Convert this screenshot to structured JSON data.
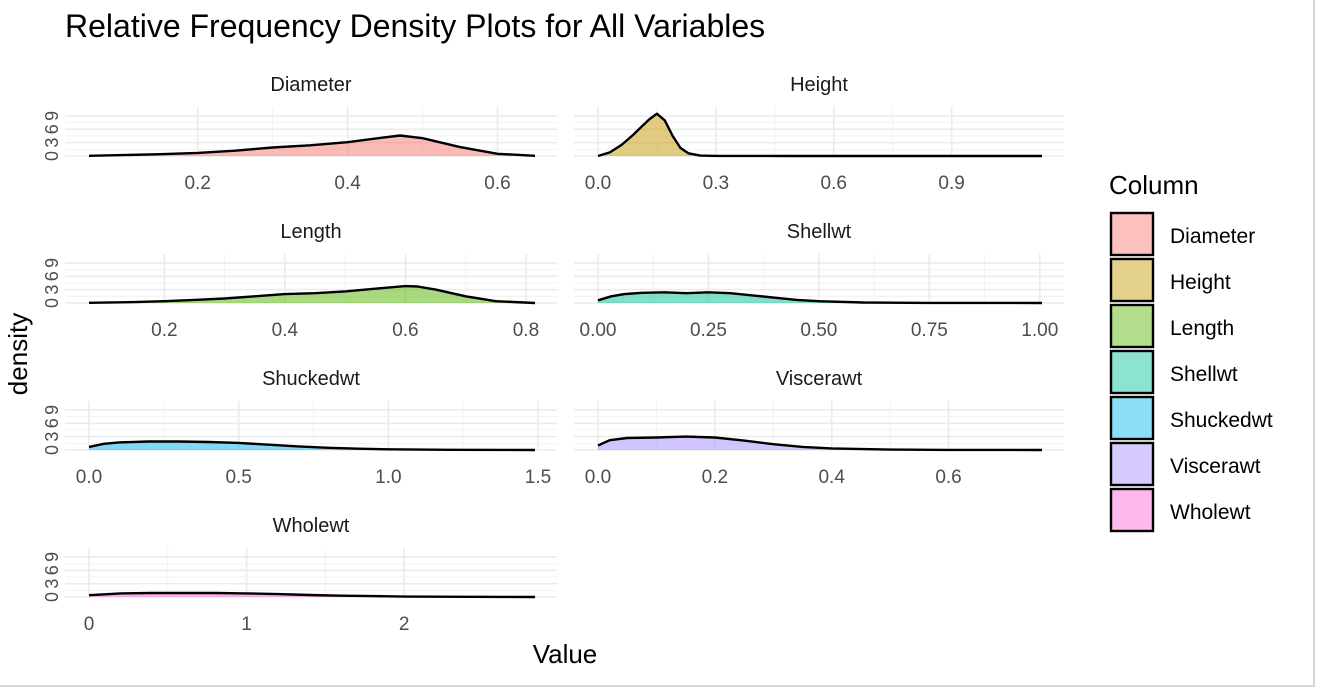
{
  "chart_data": {
    "type": "area",
    "title": "Relative Frequency Density Plots for All Variables",
    "xlabel": "Value",
    "ylabel": "density",
    "legend": {
      "title": "Column",
      "position": "right",
      "entries": [
        {
          "name": "Diameter",
          "color": "#F8766D"
        },
        {
          "name": "Height",
          "color": "#C49A00"
        },
        {
          "name": "Length",
          "color": "#53B400"
        },
        {
          "name": "Shellwt",
          "color": "#00C094"
        },
        {
          "name": "Shuckedwt",
          "color": "#00B6EB"
        },
        {
          "name": "Viscerawt",
          "color": "#A58AFF"
        },
        {
          "name": "Wholewt",
          "color": "#FB61D7"
        }
      ]
    },
    "grid": true,
    "facets": [
      {
        "name": "Diameter",
        "color": "#F8766D",
        "xlim": [
          0.055,
          0.65
        ],
        "xticks": [
          0.2,
          0.4,
          0.6
        ],
        "xtick_labels": [
          "0.2",
          "0.4",
          "0.6"
        ],
        "ylim": [
          0,
          11
        ],
        "yticks": [
          0,
          3,
          6,
          9
        ],
        "ytick_labels": [
          "0",
          "3",
          "6",
          "9"
        ],
        "x": [
          0.055,
          0.1,
          0.15,
          0.2,
          0.25,
          0.3,
          0.35,
          0.4,
          0.45,
          0.47,
          0.5,
          0.55,
          0.6,
          0.65
        ],
        "y": [
          0.05,
          0.2,
          0.4,
          0.7,
          1.2,
          1.9,
          2.4,
          3.1,
          4.2,
          4.6,
          4.0,
          2.0,
          0.5,
          0.05
        ]
      },
      {
        "name": "Height",
        "color": "#C49A00",
        "xlim": [
          0.0,
          1.13
        ],
        "xticks": [
          0.0,
          0.3,
          0.6,
          0.9
        ],
        "xtick_labels": [
          "0.0",
          "0.3",
          "0.6",
          "0.9"
        ],
        "ylim": [
          0,
          11
        ],
        "yticks": [
          0,
          3,
          6,
          9
        ],
        "ytick_labels": [
          "0",
          "3",
          "6",
          "9"
        ],
        "x": [
          0.0,
          0.03,
          0.06,
          0.09,
          0.11,
          0.13,
          0.15,
          0.17,
          0.19,
          0.21,
          0.23,
          0.26,
          0.3,
          0.5,
          1.13
        ],
        "y": [
          0.0,
          0.8,
          2.5,
          4.8,
          6.5,
          8.2,
          9.5,
          8.0,
          4.5,
          1.8,
          0.6,
          0.1,
          0.02,
          0.0,
          0.0
        ]
      },
      {
        "name": "Length",
        "color": "#53B400",
        "xlim": [
          0.075,
          0.815
        ],
        "xticks": [
          0.2,
          0.4,
          0.6,
          0.8
        ],
        "xtick_labels": [
          "0.2",
          "0.4",
          "0.6",
          "0.8"
        ],
        "ylim": [
          0,
          11
        ],
        "yticks": [
          0,
          3,
          6,
          9
        ],
        "ytick_labels": [
          "0",
          "3",
          "6",
          "9"
        ],
        "x": [
          0.075,
          0.15,
          0.2,
          0.25,
          0.3,
          0.35,
          0.4,
          0.45,
          0.5,
          0.55,
          0.6,
          0.62,
          0.65,
          0.7,
          0.75,
          0.815
        ],
        "y": [
          0.05,
          0.2,
          0.4,
          0.7,
          1.0,
          1.5,
          2.0,
          2.2,
          2.6,
          3.2,
          3.8,
          3.7,
          3.0,
          1.5,
          0.4,
          0.0
        ]
      },
      {
        "name": "Shellwt",
        "color": "#00C094",
        "xlim": [
          0.0,
          1.005
        ],
        "xticks": [
          0.0,
          0.25,
          0.5,
          0.75,
          1.0
        ],
        "xtick_labels": [
          "0.00",
          "0.25",
          "0.50",
          "0.75",
          "1.00"
        ],
        "ylim": [
          0,
          11
        ],
        "yticks": [
          0,
          3,
          6,
          9
        ],
        "ytick_labels": [
          "0",
          "3",
          "6",
          "9"
        ],
        "x": [
          0.0,
          0.03,
          0.06,
          0.1,
          0.15,
          0.2,
          0.25,
          0.3,
          0.35,
          0.4,
          0.45,
          0.5,
          0.6,
          0.75,
          1.005
        ],
        "y": [
          0.6,
          1.5,
          2.0,
          2.3,
          2.4,
          2.2,
          2.4,
          2.2,
          1.7,
          1.2,
          0.7,
          0.4,
          0.12,
          0.03,
          0.0
        ]
      },
      {
        "name": "Shuckedwt",
        "color": "#00B6EB",
        "xlim": [
          0.0,
          1.49
        ],
        "xticks": [
          0.0,
          0.5,
          1.0,
          1.5
        ],
        "xtick_labels": [
          "0.0",
          "0.5",
          "1.0",
          "1.5"
        ],
        "ylim": [
          0,
          11
        ],
        "yticks": [
          0,
          3,
          6,
          9
        ],
        "ytick_labels": [
          "0",
          "3",
          "6",
          "9"
        ],
        "x": [
          0.0,
          0.05,
          0.1,
          0.2,
          0.3,
          0.4,
          0.5,
          0.6,
          0.7,
          0.8,
          0.9,
          1.0,
          1.2,
          1.49
        ],
        "y": [
          0.7,
          1.4,
          1.7,
          1.9,
          1.9,
          1.8,
          1.6,
          1.2,
          0.8,
          0.5,
          0.3,
          0.15,
          0.05,
          0.0
        ]
      },
      {
        "name": "Viscerawt",
        "color": "#A58AFF",
        "xlim": [
          0.0,
          0.76
        ],
        "xticks": [
          0.0,
          0.2,
          0.4,
          0.6
        ],
        "xtick_labels": [
          "0.0",
          "0.2",
          "0.4",
          "0.6"
        ],
        "ylim": [
          0,
          11
        ],
        "yticks": [
          0,
          3,
          6,
          9
        ],
        "ytick_labels": [
          "0",
          "3",
          "6",
          "9"
        ],
        "x": [
          0.0,
          0.02,
          0.05,
          0.1,
          0.15,
          0.2,
          0.25,
          0.3,
          0.35,
          0.4,
          0.5,
          0.6,
          0.76
        ],
        "y": [
          1.0,
          2.2,
          2.7,
          2.8,
          3.0,
          2.8,
          2.1,
          1.3,
          0.7,
          0.35,
          0.1,
          0.03,
          0.0
        ]
      },
      {
        "name": "Wholewt",
        "color": "#FB61D7",
        "xlim": [
          0.0,
          2.83
        ],
        "xticks": [
          0.0,
          1.0,
          2.0
        ],
        "xtick_labels": [
          "0",
          "1",
          "2"
        ],
        "ylim": [
          0,
          11
        ],
        "yticks": [
          0,
          3,
          6,
          9
        ],
        "ytick_labels": [
          "0",
          "3",
          "6",
          "9"
        ],
        "x": [
          0.0,
          0.2,
          0.4,
          0.6,
          0.8,
          1.0,
          1.2,
          1.4,
          1.6,
          1.8,
          2.0,
          2.4,
          2.83
        ],
        "y": [
          0.4,
          0.8,
          0.9,
          0.9,
          0.9,
          0.8,
          0.65,
          0.45,
          0.3,
          0.2,
          0.1,
          0.04,
          0.0
        ]
      }
    ]
  }
}
